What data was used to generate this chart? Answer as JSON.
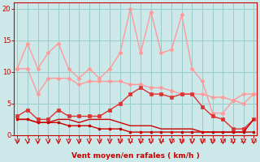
{
  "x": [
    0,
    1,
    2,
    3,
    4,
    5,
    6,
    7,
    8,
    9,
    10,
    11,
    12,
    13,
    14,
    15,
    16,
    17,
    18,
    19,
    20,
    21,
    22,
    23
  ],
  "line_rafales": [
    10.5,
    14.5,
    10.5,
    13.0,
    14.5,
    10.5,
    9.0,
    10.5,
    9.0,
    10.5,
    13.0,
    20.0,
    13.0,
    19.5,
    13.0,
    13.5,
    19.0,
    10.5,
    8.5,
    3.5,
    3.5,
    5.5,
    6.5,
    6.5
  ],
  "line_moyen": [
    10.5,
    10.5,
    6.5,
    9.0,
    9.0,
    9.0,
    8.0,
    8.5,
    8.5,
    8.5,
    8.5,
    8.0,
    8.0,
    7.5,
    7.5,
    7.0,
    6.5,
    6.5,
    6.5,
    6.0,
    6.0,
    5.5,
    5.0,
    6.5
  ],
  "line_dark_markers": [
    3.0,
    4.0,
    2.5,
    2.5,
    4.0,
    3.0,
    3.0,
    3.0,
    3.0,
    4.0,
    5.0,
    6.5,
    7.5,
    6.5,
    6.5,
    6.0,
    6.5,
    6.5,
    4.5,
    3.0,
    2.5,
    1.0,
    1.0,
    2.5
  ],
  "line_dark_flat": [
    2.5,
    2.5,
    2.0,
    2.0,
    2.5,
    2.5,
    2.0,
    2.5,
    2.5,
    2.5,
    2.0,
    1.5,
    1.5,
    1.5,
    1.0,
    1.0,
    1.0,
    1.0,
    0.5,
    0.5,
    0.5,
    0.5,
    0.5,
    2.5
  ],
  "line_decline": [
    2.5,
    2.5,
    2.0,
    2.0,
    2.0,
    1.5,
    1.5,
    1.5,
    1.0,
    1.0,
    1.0,
    0.5,
    0.5,
    0.5,
    0.5,
    0.5,
    0.5,
    0.5,
    0.5,
    0.5,
    0.5,
    0.5,
    0.5,
    0.5
  ],
  "color_light_pink": "#FF9999",
  "color_dark_red": "#CC0000",
  "color_medium_red": "#DD3333",
  "bg_color": "#CCE8E8",
  "grid_color": "#99CCCC",
  "xlabel": "Vent moyen/en rafales ( km/h )",
  "yticks": [
    0,
    5,
    10,
    15,
    20
  ],
  "ylim": [
    0,
    21
  ],
  "xlim": [
    -0.3,
    23.3
  ]
}
